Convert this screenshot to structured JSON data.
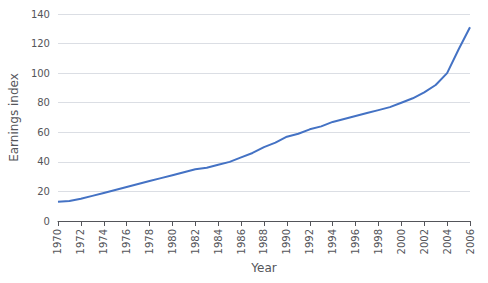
{
  "chart_data": {
    "type": "line",
    "x": [
      1970,
      1971,
      1972,
      1973,
      1974,
      1975,
      1976,
      1977,
      1978,
      1979,
      1980,
      1981,
      1982,
      1983,
      1984,
      1985,
      1986,
      1987,
      1988,
      1989,
      1990,
      1991,
      1992,
      1993,
      1994,
      1995,
      1996,
      1997,
      1998,
      1999,
      2000,
      2001,
      2002,
      2003,
      2004,
      2005,
      2006
    ],
    "values": [
      13,
      13.5,
      15,
      17,
      19,
      21,
      23,
      25,
      27,
      29,
      31,
      33,
      35,
      36,
      38,
      40,
      43,
      46,
      50,
      53,
      57,
      59,
      62,
      64,
      67,
      69,
      71,
      73,
      75,
      77,
      80,
      83,
      87,
      92,
      100,
      116,
      131
    ],
    "color": "#4472C4",
    "xlim": [
      1970,
      2006
    ],
    "ylim": [
      0,
      140
    ],
    "xticks": [
      1970,
      1972,
      1974,
      1976,
      1978,
      1980,
      1982,
      1984,
      1986,
      1988,
      1990,
      1992,
      1994,
      1996,
      1998,
      2000,
      2002,
      2004,
      2006
    ],
    "yticks": [
      0,
      20,
      40,
      60,
      80,
      100,
      120,
      140
    ],
    "xlabel": "Year",
    "ylabel": "Earnings index",
    "grid": true
  }
}
